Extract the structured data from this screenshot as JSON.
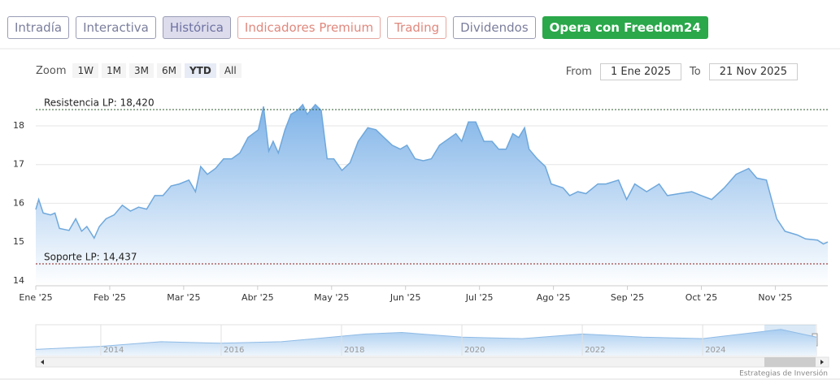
{
  "ui": {
    "tabs": [
      "Intradía",
      "Interactiva",
      "Histórica",
      "Indicadores Premium",
      "Trading",
      "Dividendos",
      "Opera con Freedom24"
    ],
    "active_tab": 2,
    "zoom_label": "Zoom",
    "zoom_buttons": [
      "1W",
      "1M",
      "3M",
      "6M",
      "YTD",
      "All"
    ],
    "active_zoom": 4,
    "from_label": "From",
    "from": "1 Ene 2025",
    "to_label": "To",
    "to": "21 Nov 2025",
    "credit": "Estrategias de Inversión"
  },
  "chart_data": [
    {
      "type": "area",
      "color": "#6fa8dc",
      "x": [
        0,
        0.04,
        0.1,
        0.2,
        0.26,
        0.32,
        0.45,
        0.54,
        0.62,
        0.69,
        0.79,
        0.86,
        0.95,
        1.06,
        1.17,
        1.28,
        1.39,
        1.5,
        1.61,
        1.72,
        1.83,
        1.94,
        2.07,
        2.16,
        2.23,
        2.32,
        2.43,
        2.54,
        2.65,
        2.76,
        2.87,
        3.01,
        3.08,
        3.15,
        3.21,
        3.28,
        3.37,
        3.45,
        3.54,
        3.61,
        3.67,
        3.78,
        3.86,
        3.94,
        4.03,
        4.14,
        4.25,
        4.36,
        4.49,
        4.6,
        4.71,
        4.82,
        4.93,
        5.02,
        5.13,
        5.24,
        5.35,
        5.46,
        5.57,
        5.68,
        5.76,
        5.85,
        5.95,
        6.06,
        6.17,
        6.26,
        6.36,
        6.45,
        6.53,
        6.61,
        6.67,
        6.78,
        6.89,
        6.97,
        7.13,
        7.22,
        7.33,
        7.44,
        7.6,
        7.71,
        7.88,
        7.99,
        8.1,
        8.26,
        8.43,
        8.54,
        8.7,
        8.87,
        9.0,
        9.14,
        9.31,
        9.47,
        9.64,
        9.75,
        9.88,
        10.02,
        10.13,
        10.3,
        10.41,
        10.57,
        10.65,
        10.71
      ],
      "values": [
        15.84,
        16.1,
        15.75,
        15.7,
        15.75,
        15.35,
        15.3,
        15.6,
        15.28,
        15.4,
        15.1,
        15.4,
        15.6,
        15.7,
        15.95,
        15.8,
        15.9,
        15.85,
        16.2,
        16.2,
        16.45,
        16.5,
        16.6,
        16.3,
        16.95,
        16.75,
        16.9,
        17.15,
        17.15,
        17.3,
        17.7,
        17.9,
        18.5,
        17.35,
        17.6,
        17.3,
        17.9,
        18.3,
        18.4,
        18.55,
        18.3,
        18.55,
        18.4,
        17.15,
        17.15,
        16.85,
        17.05,
        17.6,
        17.95,
        17.9,
        17.7,
        17.5,
        17.4,
        17.5,
        17.15,
        17.1,
        17.15,
        17.5,
        17.65,
        17.8,
        17.6,
        18.1,
        18.1,
        17.6,
        17.6,
        17.4,
        17.4,
        17.8,
        17.7,
        17.95,
        17.4,
        17.15,
        16.95,
        16.5,
        16.4,
        16.2,
        16.3,
        16.25,
        16.5,
        16.5,
        16.6,
        16.1,
        16.5,
        16.3,
        16.5,
        16.2,
        16.25,
        16.3,
        16.2,
        16.1,
        16.4,
        16.75,
        16.9,
        16.65,
        16.6,
        15.6,
        15.28,
        15.18,
        15.08,
        15.05,
        14.95,
        15.0
      ],
      "xlim": [
        0,
        10.71
      ],
      "xticks": [
        {
          "value": 0,
          "label": "Ene '25"
        },
        {
          "value": 1,
          "label": "Feb '25"
        },
        {
          "value": 2,
          "label": "Mar '25"
        },
        {
          "value": 3,
          "label": "Abr '25"
        },
        {
          "value": 4,
          "label": "May '25"
        },
        {
          "value": 5,
          "label": "Jun '25"
        },
        {
          "value": 6,
          "label": "Jul '25"
        },
        {
          "value": 7,
          "label": "Ago '25"
        },
        {
          "value": 8,
          "label": "Sep '25"
        },
        {
          "value": 9,
          "label": "Oct '25"
        },
        {
          "value": 10,
          "label": "Nov '25"
        }
      ],
      "ylim": [
        13.87,
        18.84
      ],
      "yticks": [
        14,
        15,
        16,
        17,
        18
      ],
      "grid": true,
      "annotations": [
        {
          "label": "Resistencia LP: 18,420",
          "value": 18.42,
          "color": "#2e5b2e"
        },
        {
          "label": "Soporte LP: 14,437",
          "value": 14.437,
          "color": "#8b1a1a"
        }
      ]
    },
    {
      "type": "area",
      "color": "#8fbbe6",
      "x": [
        2012.92,
        2014,
        2015,
        2016,
        2017,
        2018.4,
        2019,
        2020,
        2021,
        2022,
        2023,
        2024,
        2025.3,
        2025.89
      ],
      "values": [
        11,
        12,
        13.5,
        13,
        13.5,
        16,
        16.5,
        15,
        14.5,
        16,
        15,
        14.5,
        17.5,
        15
      ],
      "xlim": [
        2012.92,
        2025.89
      ],
      "xticks": [
        2014,
        2016,
        2018,
        2020,
        2022,
        2024
      ],
      "ylim": [
        9,
        19
      ]
    }
  ]
}
